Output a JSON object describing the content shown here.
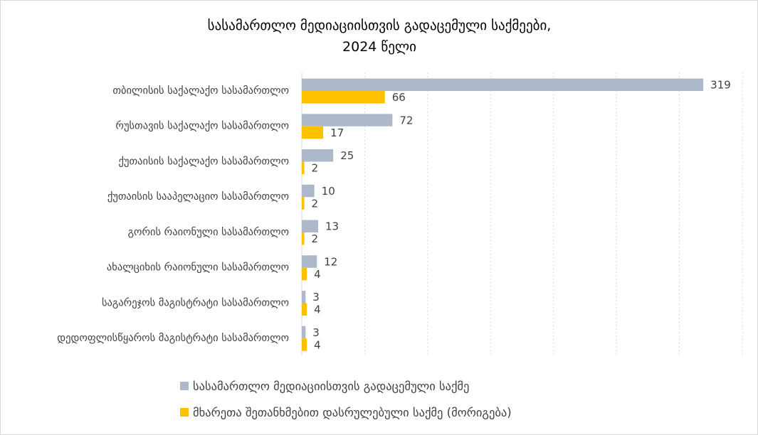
{
  "chart_data": {
    "type": "bar",
    "orientation": "horizontal",
    "title": [
      "სასამართლო მედიაციისთვის გადაცემული საქმეები,",
      "2024 წელი"
    ],
    "xlabel": "",
    "ylabel": "",
    "categories": [
      "თბილისის საქალაქო სასამართლო",
      "რუსთავის საქალაქო სასამართლო",
      "ქუთაისის საქალაქო სასამართლო",
      "ქუთაისის სააპელაციო სასამართლო",
      "გორის რაიონული სასამართლო",
      "ახალციხის რაიონული სასამართლო",
      "საგარეჯოს მაგისტრატი სასამართლო",
      "დედოფლისწყაროს მაგისტრატი სასამართლო"
    ],
    "series": [
      {
        "name": "სასამართლო მედიაციისთვის გადაცემული საქმე",
        "color": "#ADB9CA",
        "values": [
          319,
          72,
          25,
          10,
          13,
          12,
          3,
          3
        ]
      },
      {
        "name": "მხარეთა შეთანხმებით დასრულებული საქმე (მორიგება)",
        "color": "#FFC000",
        "values": [
          66,
          17,
          2,
          2,
          2,
          4,
          4,
          4
        ]
      }
    ],
    "xlim": [
      0,
      350
    ],
    "grid": true,
    "data_labels": true,
    "legend": "bottom"
  }
}
